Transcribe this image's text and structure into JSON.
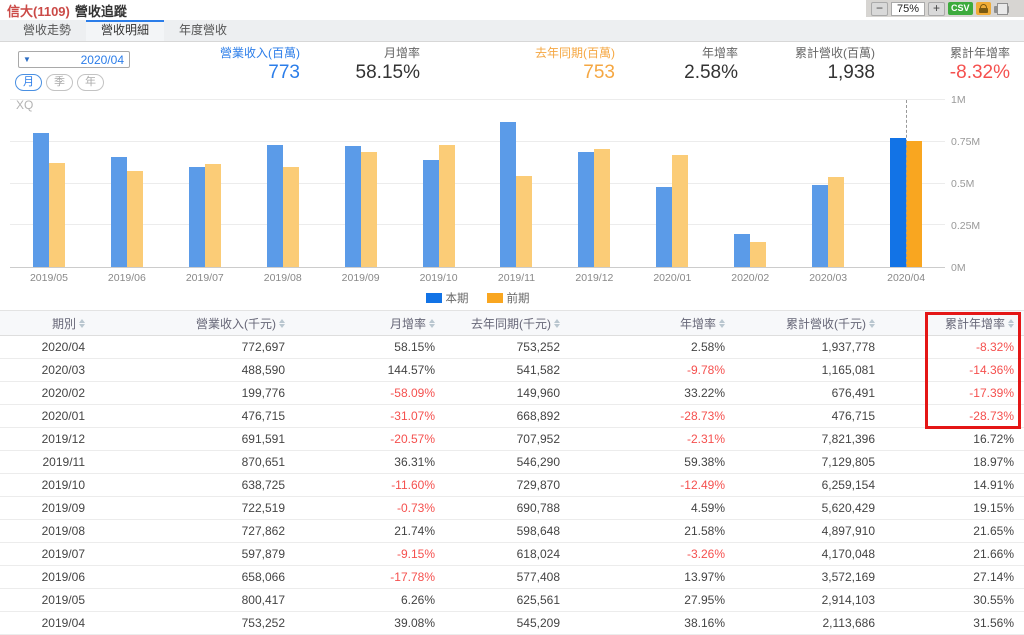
{
  "header": {
    "title_stock": "信大(1109)",
    "title_page": "營收追蹤",
    "zoom_out": "−",
    "zoom_level": "75%",
    "zoom_in": "+",
    "csv_label": "CSV"
  },
  "tabs": [
    {
      "label": "營收走勢",
      "active": false
    },
    {
      "label": "營收明細",
      "active": true
    },
    {
      "label": "年度營收",
      "active": false
    }
  ],
  "controls": {
    "period_dropdown_value": "2020/04",
    "dropdown_caret": "▼",
    "period_toggles": [
      {
        "label": "月",
        "active": true
      },
      {
        "label": "季",
        "active": false
      },
      {
        "label": "年",
        "active": false
      }
    ]
  },
  "stats": [
    {
      "label": "營業收入(百萬)",
      "value": "773",
      "color": "blue"
    },
    {
      "label": "月增率",
      "value": "58.15%",
      "color": "dark"
    },
    {
      "label": "去年同期(百萬)",
      "value": "753",
      "color": "orange"
    },
    {
      "label": "年增率",
      "value": "2.58%",
      "color": "dark"
    },
    {
      "label": "累計營收(百萬)",
      "value": "1,938",
      "color": "dark"
    },
    {
      "label": "累計年增率",
      "value": "-8.32%",
      "color": "red"
    }
  ],
  "chart_data": {
    "type": "bar",
    "watermark": "XQ",
    "categories": [
      "2019/05",
      "2019/06",
      "2019/07",
      "2019/08",
      "2019/09",
      "2019/10",
      "2019/11",
      "2019/12",
      "2020/01",
      "2020/02",
      "2020/03",
      "2020/04"
    ],
    "series": [
      {
        "name": "本期",
        "values": [
          800417,
          658066,
          597879,
          727862,
          722519,
          638725,
          870651,
          691591,
          476715,
          199776,
          488590,
          772697
        ]
      },
      {
        "name": "前期",
        "values": [
          625561,
          577408,
          618024,
          598648,
          690788,
          729870,
          546290,
          707952,
          668892,
          149960,
          541582,
          753252
        ]
      }
    ],
    "highlight_category": "2020/04",
    "ylim": [
      0,
      1000000
    ],
    "y_ticks": [
      "0M",
      "0.25M",
      "0.5M",
      "0.75M",
      "1M"
    ],
    "grid": true,
    "legend_position": "bottom",
    "colors": {
      "bar_blue": "#5b9be8",
      "bar_blue_highlight": "#1273e6",
      "bar_orange": "#fbcc77",
      "bar_orange_highlight": "#f9a620"
    }
  },
  "legend": [
    {
      "label": "本期",
      "color": "#1273e6"
    },
    {
      "label": "前期",
      "color": "#f9a620"
    }
  ],
  "table": {
    "headers": [
      "期別",
      "營業收入(千元)",
      "月增率",
      "去年同期(千元)",
      "年增率",
      "累計營收(千元)",
      "累計年增率"
    ],
    "rows": [
      [
        "2020/04",
        "772,697",
        "58.15%",
        "753,252",
        "2.58%",
        "1,937,778",
        "-8.32%"
      ],
      [
        "2020/03",
        "488,590",
        "144.57%",
        "541,582",
        "-9.78%",
        "1,165,081",
        "-14.36%"
      ],
      [
        "2020/02",
        "199,776",
        "-58.09%",
        "149,960",
        "33.22%",
        "676,491",
        "-17.39%"
      ],
      [
        "2020/01",
        "476,715",
        "-31.07%",
        "668,892",
        "-28.73%",
        "476,715",
        "-28.73%"
      ],
      [
        "2019/12",
        "691,591",
        "-20.57%",
        "707,952",
        "-2.31%",
        "7,821,396",
        "16.72%"
      ],
      [
        "2019/11",
        "870,651",
        "36.31%",
        "546,290",
        "59.38%",
        "7,129,805",
        "18.97%"
      ],
      [
        "2019/10",
        "638,725",
        "-11.60%",
        "729,870",
        "-12.49%",
        "6,259,154",
        "14.91%"
      ],
      [
        "2019/09",
        "722,519",
        "-0.73%",
        "690,788",
        "4.59%",
        "5,620,429",
        "19.15%"
      ],
      [
        "2019/08",
        "727,862",
        "21.74%",
        "598,648",
        "21.58%",
        "4,897,910",
        "21.65%"
      ],
      [
        "2019/07",
        "597,879",
        "-9.15%",
        "618,024",
        "-3.26%",
        "4,170,048",
        "21.66%"
      ],
      [
        "2019/06",
        "658,066",
        "-17.78%",
        "577,408",
        "13.97%",
        "3,572,169",
        "27.14%"
      ],
      [
        "2019/05",
        "800,417",
        "6.26%",
        "625,561",
        "27.95%",
        "2,914,103",
        "30.55%"
      ],
      [
        "2019/04",
        "753,252",
        "39.08%",
        "545,209",
        "38.16%",
        "2,113,686",
        "31.56%"
      ]
    ],
    "highlight_color": "#e41616"
  }
}
